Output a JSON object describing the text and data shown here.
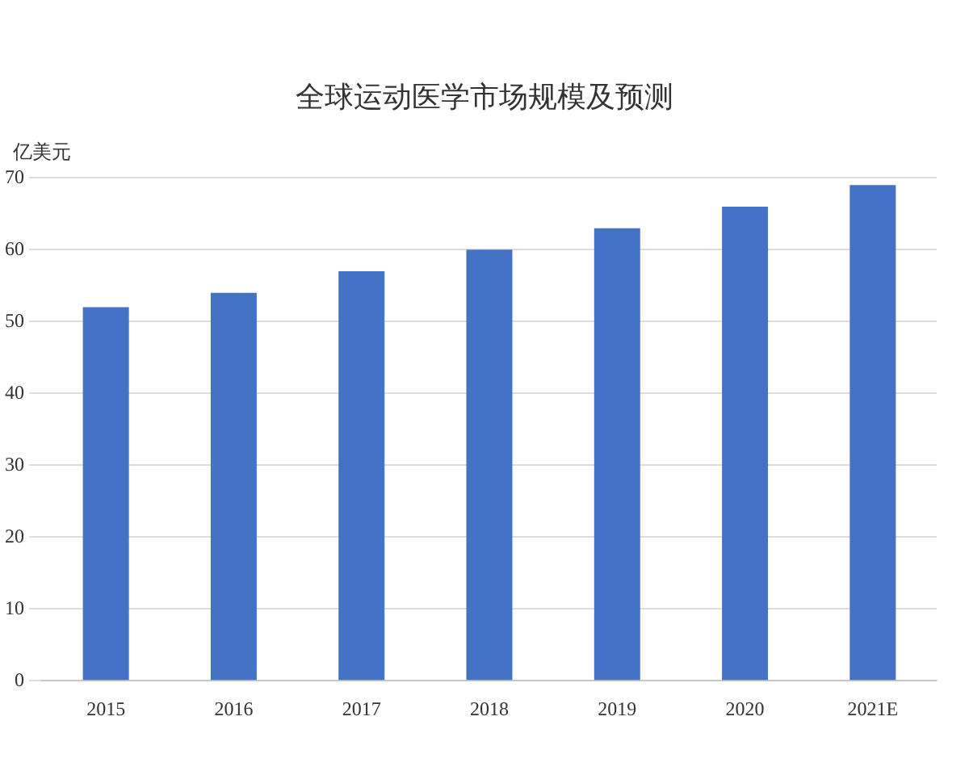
{
  "chart_data": {
    "type": "bar",
    "title": "全球运动医学市场规模及预测",
    "ylabel": "亿美元",
    "categories": [
      "2015",
      "2016",
      "2017",
      "2018",
      "2019",
      "2020",
      "2021E"
    ],
    "values": [
      52,
      54,
      57,
      60,
      63,
      66,
      69
    ],
    "color": "#4472c4",
    "ylim": [
      0,
      70
    ],
    "yticks": [
      0,
      10,
      20,
      30,
      40,
      50,
      60,
      70
    ],
    "grid": "y"
  }
}
